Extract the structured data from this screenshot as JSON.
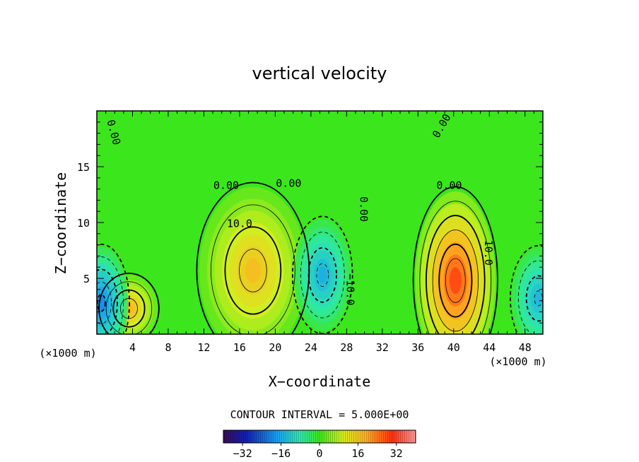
{
  "chart_data": {
    "type": "heatmap",
    "title": "vertical velocity",
    "xlabel": "X−coordinate",
    "ylabel": "Z−coordinate",
    "x_unit": "(×1000 m)",
    "x_unit_right": "(×1000 m)",
    "xlim": [
      0,
      50
    ],
    "ylim": [
      0,
      20
    ],
    "xticks": [
      4,
      8,
      12,
      16,
      20,
      24,
      28,
      32,
      36,
      40,
      44,
      48
    ],
    "yticks": [
      5,
      10,
      15
    ],
    "contour_interval_text": "CONTOUR INTERVAL = 5.000E+00",
    "contour_interval": 5.0,
    "colorbar": {
      "min": -40,
      "max": 40,
      "ticks": [
        -32,
        -16,
        0,
        16,
        32
      ]
    },
    "contour_labels": [
      {
        "text": "10.0",
        "x": 16,
        "z": 9.6
      },
      {
        "text": "10.0",
        "x": 43.5,
        "z": 7.3,
        "rotate": 90
      },
      {
        "text": "0.00",
        "x": 14.5,
        "z": 13
      },
      {
        "text": "0.00",
        "x": 21.5,
        "z": 13.2
      },
      {
        "text": "0.00",
        "x": 29.5,
        "z": 11.2,
        "rotate": 90
      },
      {
        "text": "0.00",
        "x": 39.5,
        "z": 13
      },
      {
        "text": "0.00",
        "x": 1.5,
        "z": 18,
        "rotate": 75
      },
      {
        "text": "0.00",
        "x": 39,
        "z": 18.5,
        "rotate": -60
      },
      {
        "text": "−10.0",
        "x": 28,
        "z": 4,
        "rotate": 90
      }
    ],
    "features": [
      {
        "name": "updraft-1",
        "x": 3.6,
        "z": 2.3,
        "peak": 18
      },
      {
        "name": "updraft-2",
        "x": 17.5,
        "z": 5.7,
        "peak": 17
      },
      {
        "name": "updraft-3",
        "x": 40.2,
        "z": 4.8,
        "peak": 28
      },
      {
        "name": "downdraft-1",
        "x": 0.5,
        "z": 2.8,
        "peak": -20
      },
      {
        "name": "downdraft-2",
        "x": 25.3,
        "z": 5.3,
        "peak": -16
      },
      {
        "name": "downdraft-3",
        "x": 49.5,
        "z": 3.2,
        "peak": -15
      }
    ]
  }
}
